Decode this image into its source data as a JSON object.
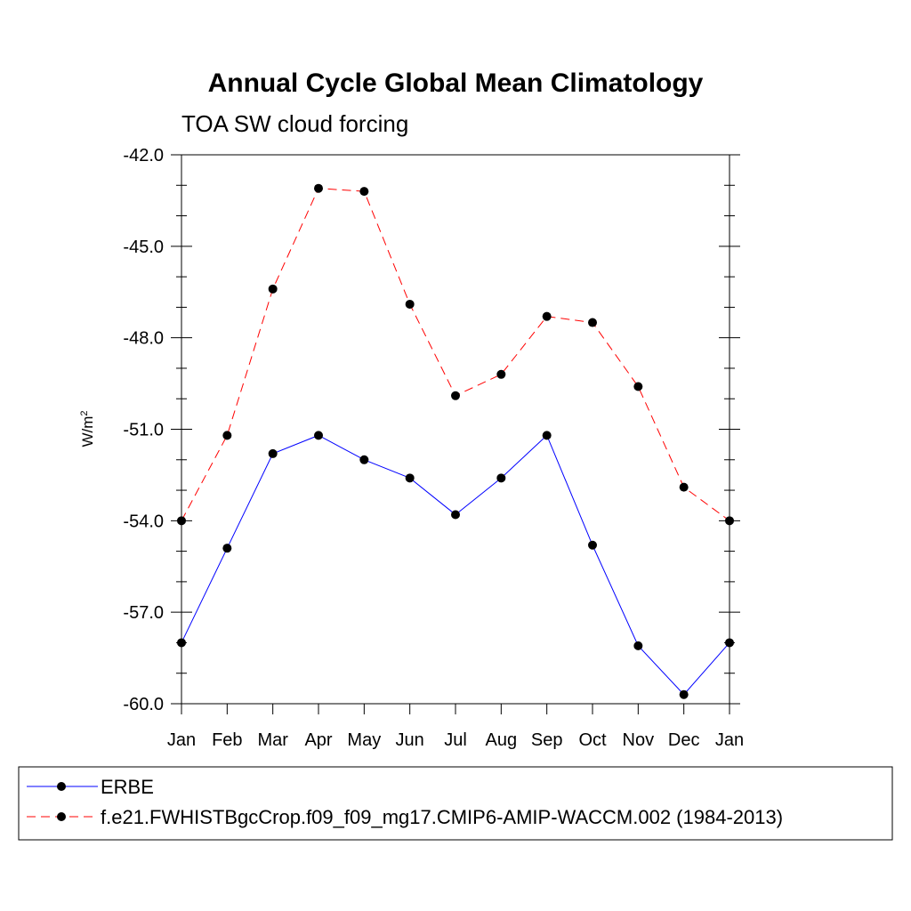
{
  "chart_data": {
    "type": "line",
    "title": "Annual Cycle Global Mean Climatology",
    "subtitle": "TOA SW cloud forcing",
    "ylabel_base": "W/m",
    "ylabel_exp": "2",
    "xlabel": "",
    "categories": [
      "Jan",
      "Feb",
      "Mar",
      "Apr",
      "May",
      "Jun",
      "Jul",
      "Aug",
      "Sep",
      "Oct",
      "Nov",
      "Dec",
      "Jan"
    ],
    "ylim": [
      -60.0,
      -42.0
    ],
    "yticks": [
      -42.0,
      -45.0,
      -48.0,
      -51.0,
      -54.0,
      -57.0,
      -60.0
    ],
    "ytick_labels": [
      "-42.0",
      "-45.0",
      "-48.0",
      "-51.0",
      "-54.0",
      "-57.0",
      "-60.0"
    ],
    "series": [
      {
        "name": "ERBE",
        "color": "#0000ff",
        "dash": "solid",
        "values": [
          -58.0,
          -54.9,
          -51.8,
          -51.2,
          -52.0,
          -52.6,
          -53.8,
          -52.6,
          -51.2,
          -54.8,
          -58.1,
          -59.7,
          -58.0
        ]
      },
      {
        "name": "f.e21.FWHISTBgcCrop.f09_f09_mg17.CMIP6-AMIP-WACCM.002 (1984-2013)",
        "color": "#ff0000",
        "dash": "dashed",
        "values": [
          -54.0,
          -51.2,
          -46.4,
          -43.1,
          -43.2,
          -46.9,
          -49.9,
          -49.2,
          -47.3,
          -47.5,
          -49.6,
          -52.9,
          -54.0
        ]
      }
    ],
    "legend_position": "bottom"
  }
}
